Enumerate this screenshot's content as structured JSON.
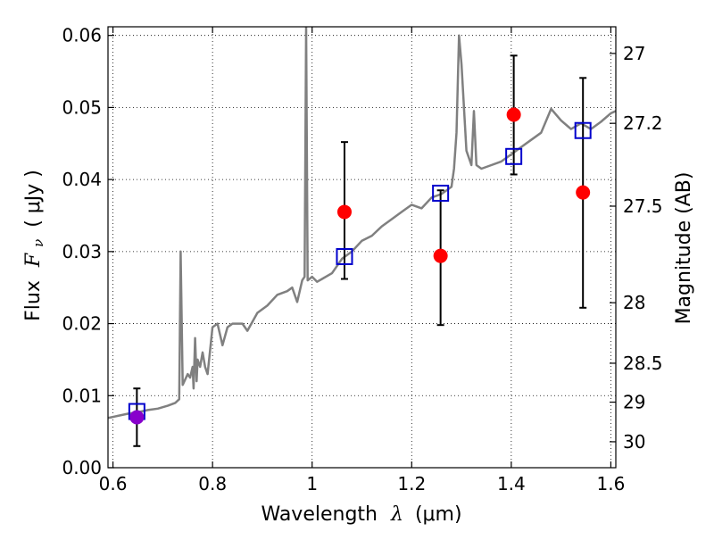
{
  "chart_data": {
    "type": "scatter",
    "xlabel_text": "Wavelength",
    "xlabel_lambda": "λ",
    "xlabel_unit": "(μm)",
    "ylabel_text": "Flux",
    "ylabel_symbol": "F",
    "ylabel_sub": "ν",
    "ylabel_unit": "(  μJy )",
    "y2label": "Magnitude (AB)",
    "xlim": [
      0.59,
      1.61
    ],
    "ylim": [
      0.0,
      0.0612
    ],
    "x_ticks": [
      0.6,
      0.8,
      1.0,
      1.2,
      1.4,
      1.6
    ],
    "x_tick_labels": [
      "0.6",
      "0.8",
      "1",
      "1.2",
      "1.4",
      "1.6"
    ],
    "y_ticks": [
      0.0,
      0.01,
      0.02,
      0.03,
      0.04,
      0.05,
      0.06
    ],
    "y_tick_labels": [
      "0.00",
      "0.01",
      "0.02",
      "0.03",
      "0.04",
      "0.05",
      "0.06"
    ],
    "y2_ticks": [
      {
        "label": "27",
        "flux": 0.0575
      },
      {
        "label": "27.2",
        "flux": 0.0478
      },
      {
        "label": "27.5",
        "flux": 0.0363
      },
      {
        "label": "28",
        "flux": 0.0229
      },
      {
        "label": "28.5",
        "flux": 0.0145
      },
      {
        "label": "29",
        "flux": 0.0091
      },
      {
        "label": "30",
        "flux": 0.0036
      }
    ],
    "grid": true,
    "colors": {
      "spectrum": "#808080",
      "observed": "#ff0000",
      "model_box": "#0000cc",
      "errorbar": "#000000",
      "overlap": "#8800cc"
    },
    "spectrum": [
      [
        0.59,
        0.0069
      ],
      [
        0.61,
        0.0072
      ],
      [
        0.63,
        0.0075
      ],
      [
        0.65,
        0.0077
      ],
      [
        0.67,
        0.008
      ],
      [
        0.69,
        0.0082
      ],
      [
        0.71,
        0.0086
      ],
      [
        0.725,
        0.009
      ],
      [
        0.733,
        0.0095
      ],
      [
        0.736,
        0.03
      ],
      [
        0.74,
        0.0115
      ],
      [
        0.75,
        0.013
      ],
      [
        0.755,
        0.0125
      ],
      [
        0.76,
        0.014
      ],
      [
        0.762,
        0.011
      ],
      [
        0.765,
        0.018
      ],
      [
        0.768,
        0.012
      ],
      [
        0.77,
        0.015
      ],
      [
        0.775,
        0.014
      ],
      [
        0.78,
        0.016
      ],
      [
        0.785,
        0.014
      ],
      [
        0.79,
        0.013
      ],
      [
        0.8,
        0.0195
      ],
      [
        0.81,
        0.02
      ],
      [
        0.82,
        0.017
      ],
      [
        0.83,
        0.0195
      ],
      [
        0.84,
        0.02
      ],
      [
        0.86,
        0.02
      ],
      [
        0.87,
        0.019
      ],
      [
        0.89,
        0.0215
      ],
      [
        0.91,
        0.0225
      ],
      [
        0.93,
        0.024
      ],
      [
        0.95,
        0.0245
      ],
      [
        0.96,
        0.025
      ],
      [
        0.97,
        0.023
      ],
      [
        0.98,
        0.026
      ],
      [
        0.985,
        0.0265
      ],
      [
        0.988,
        0.0612
      ],
      [
        0.991,
        0.026
      ],
      [
        1.0,
        0.0265
      ],
      [
        1.01,
        0.0258
      ],
      [
        1.02,
        0.0262
      ],
      [
        1.04,
        0.027
      ],
      [
        1.06,
        0.029
      ],
      [
        1.08,
        0.03
      ],
      [
        1.1,
        0.0315
      ],
      [
        1.12,
        0.0322
      ],
      [
        1.14,
        0.0335
      ],
      [
        1.16,
        0.0345
      ],
      [
        1.18,
        0.0355
      ],
      [
        1.2,
        0.0365
      ],
      [
        1.22,
        0.036
      ],
      [
        1.24,
        0.0375
      ],
      [
        1.26,
        0.038
      ],
      [
        1.28,
        0.039
      ],
      [
        1.285,
        0.0415
      ],
      [
        1.29,
        0.0465
      ],
      [
        1.295,
        0.06
      ],
      [
        1.3,
        0.056
      ],
      [
        1.31,
        0.044
      ],
      [
        1.32,
        0.042
      ],
      [
        1.325,
        0.0495
      ],
      [
        1.33,
        0.042
      ],
      [
        1.34,
        0.0415
      ],
      [
        1.36,
        0.042
      ],
      [
        1.38,
        0.0425
      ],
      [
        1.4,
        0.0435
      ],
      [
        1.42,
        0.0445
      ],
      [
        1.44,
        0.0455
      ],
      [
        1.46,
        0.0465
      ],
      [
        1.48,
        0.0498
      ],
      [
        1.5,
        0.0482
      ],
      [
        1.52,
        0.047
      ],
      [
        1.54,
        0.0478
      ],
      [
        1.56,
        0.047
      ],
      [
        1.58,
        0.048
      ],
      [
        1.6,
        0.0492
      ],
      [
        1.61,
        0.0495
      ]
    ],
    "observed": [
      {
        "x": 0.648,
        "y": 0.007,
        "yerr_low": 0.003,
        "yerr_high": 0.011
      },
      {
        "x": 1.065,
        "y": 0.0355,
        "yerr_low": 0.0262,
        "yerr_high": 0.0452
      },
      {
        "x": 1.258,
        "y": 0.0294,
        "yerr_low": 0.0198,
        "yerr_high": 0.0385
      },
      {
        "x": 1.405,
        "y": 0.049,
        "yerr_low": 0.0407,
        "yerr_high": 0.0572
      },
      {
        "x": 1.544,
        "y": 0.0382,
        "yerr_low": 0.0222,
        "yerr_high": 0.0541
      }
    ],
    "model": [
      {
        "x": 0.648,
        "y": 0.0078
      },
      {
        "x": 1.065,
        "y": 0.0293
      },
      {
        "x": 1.258,
        "y": 0.0381
      },
      {
        "x": 1.405,
        "y": 0.0432
      },
      {
        "x": 1.544,
        "y": 0.0468
      }
    ]
  }
}
